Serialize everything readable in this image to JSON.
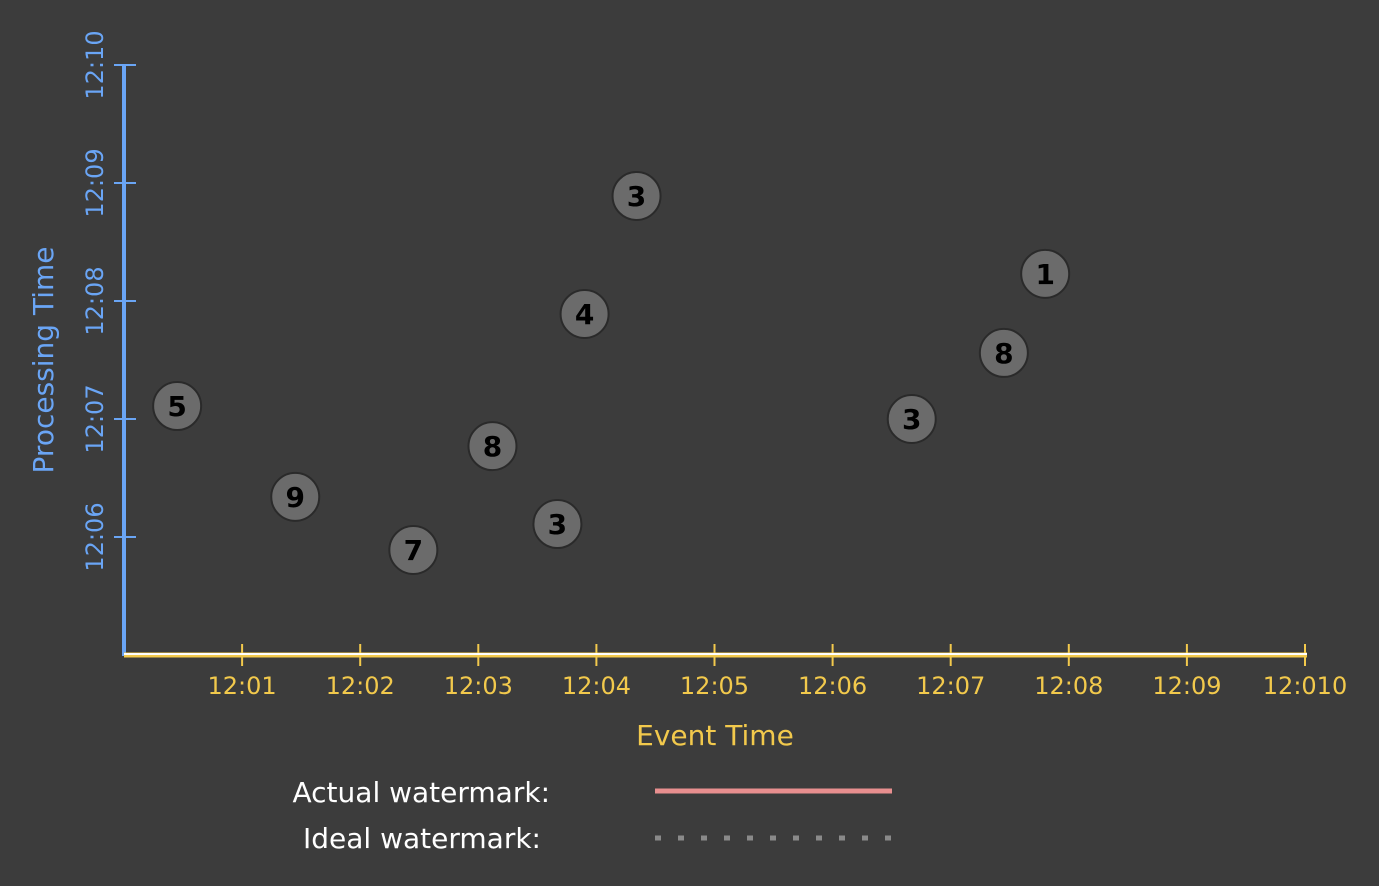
{
  "colors": {
    "background": "#3c3c3c",
    "x_axis": "#f2c94c",
    "y_axis": "#6aa5f5",
    "point_fill": "#6b6b6b",
    "point_stroke": "#2a2a2a",
    "actual_watermark": "#e88f8f",
    "ideal_watermark": "#8a8a8a"
  },
  "chart_data": {
    "type": "scatter",
    "xlabel": "Event Time",
    "ylabel": "Processing Time",
    "x_tick_labels": [
      "12:01",
      "12:02",
      "12:03",
      "12:04",
      "12:05",
      "12:06",
      "12:07",
      "12:08",
      "12:09",
      "12:010"
    ],
    "y_tick_labels": [
      "12:06",
      "12:07",
      "12:08",
      "12:09",
      "12:10"
    ],
    "xlim": [
      0,
      10
    ],
    "ylim": [
      5,
      10
    ],
    "grid": false,
    "points": [
      {
        "x": 0.45,
        "y": 7.11,
        "label": "5"
      },
      {
        "x": 1.45,
        "y": 6.34,
        "label": "9"
      },
      {
        "x": 2.45,
        "y": 5.89,
        "label": "7"
      },
      {
        "x": 3.12,
        "y": 6.77,
        "label": "8"
      },
      {
        "x": 3.67,
        "y": 6.11,
        "label": "3"
      },
      {
        "x": 3.9,
        "y": 7.89,
        "label": "4"
      },
      {
        "x": 4.34,
        "y": 8.89,
        "label": "3"
      },
      {
        "x": 6.67,
        "y": 7.0,
        "label": "3"
      },
      {
        "x": 7.45,
        "y": 7.56,
        "label": "8"
      },
      {
        "x": 7.8,
        "y": 8.23,
        "label": "1"
      }
    ]
  },
  "legend": {
    "actual_label": "Actual watermark:",
    "ideal_label": "Ideal watermark:"
  }
}
